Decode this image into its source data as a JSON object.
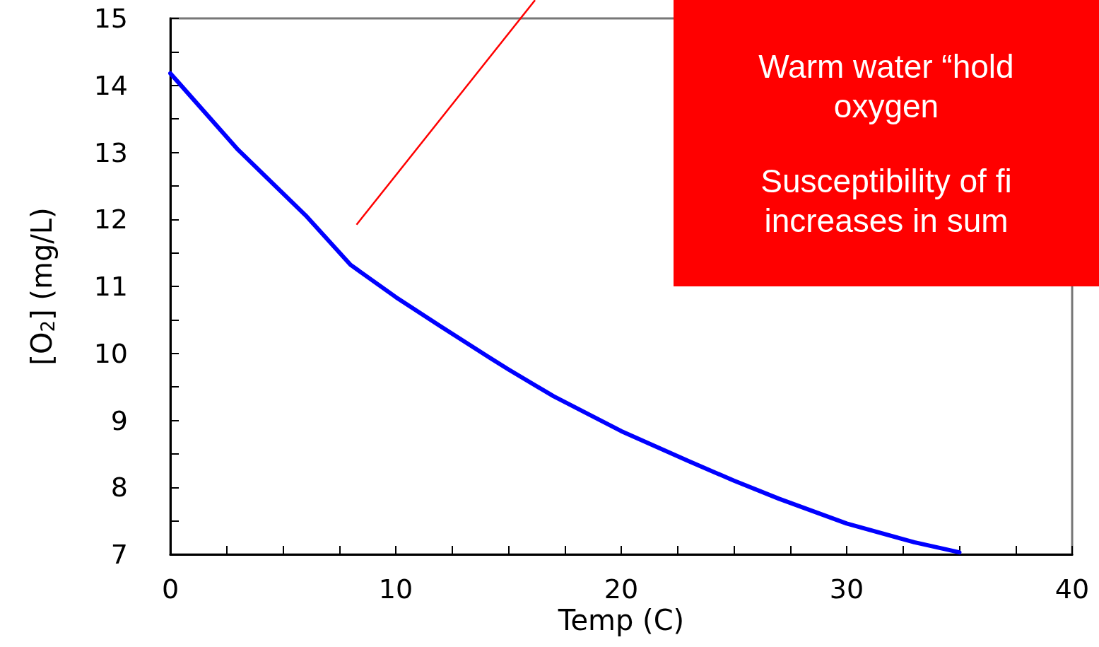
{
  "chart_data": {
    "type": "line",
    "xlabel": "Temp (C)",
    "ylabel": "[O$_{2}$] (mg/L)",
    "x": [
      0,
      3,
      6,
      8,
      10,
      12,
      14,
      15,
      17,
      20,
      23,
      25,
      27,
      30,
      33,
      35
    ],
    "series": [
      {
        "color": "#0000ff",
        "values": [
          14.18,
          13.04,
          12.06,
          11.32,
          10.84,
          10.4,
          9.97,
          9.76,
          9.36,
          8.84,
          8.39,
          8.1,
          7.83,
          7.46,
          7.18,
          7.03
        ]
      }
    ],
    "xlim": [
      0,
      40
    ],
    "xticks": [
      0,
      {
        "value": 2.5,
        "label": null
      },
      {
        "value": 5,
        "label": null
      },
      {
        "value": 7.5,
        "label": null
      },
      10,
      {
        "value": 12.5,
        "label": null
      },
      {
        "value": 15,
        "label": null
      },
      {
        "value": 17.5,
        "label": null
      },
      20,
      {
        "value": 22.5,
        "label": null
      },
      {
        "value": 25,
        "label": null
      },
      {
        "value": 27.5,
        "label": null
      },
      30,
      {
        "value": 32.5,
        "label": null
      },
      {
        "value": 35,
        "label": null
      },
      {
        "value": 37.5,
        "label": null
      },
      40
    ],
    "ylim": [
      7,
      15
    ],
    "yticks": [
      7,
      {
        "value": 7.5,
        "label": null
      },
      8,
      {
        "value": 8.5,
        "label": null
      },
      9,
      {
        "value": 9.5,
        "label": null
      },
      10,
      {
        "value": 10.5,
        "label": null
      },
      11,
      {
        "value": 11.5,
        "label": null
      },
      12,
      {
        "value": 12.5,
        "label": null
      },
      13,
      {
        "value": 13.5,
        "label": null
      },
      14,
      {
        "value": 14.5,
        "label": null
      },
      15
    ],
    "grid": false,
    "marker": "none",
    "line_style": "solid",
    "annotations": [
      "Warm water “hold\noxygen",
      "Susceptibility of fi\nincreases in sum"
    ]
  }
}
